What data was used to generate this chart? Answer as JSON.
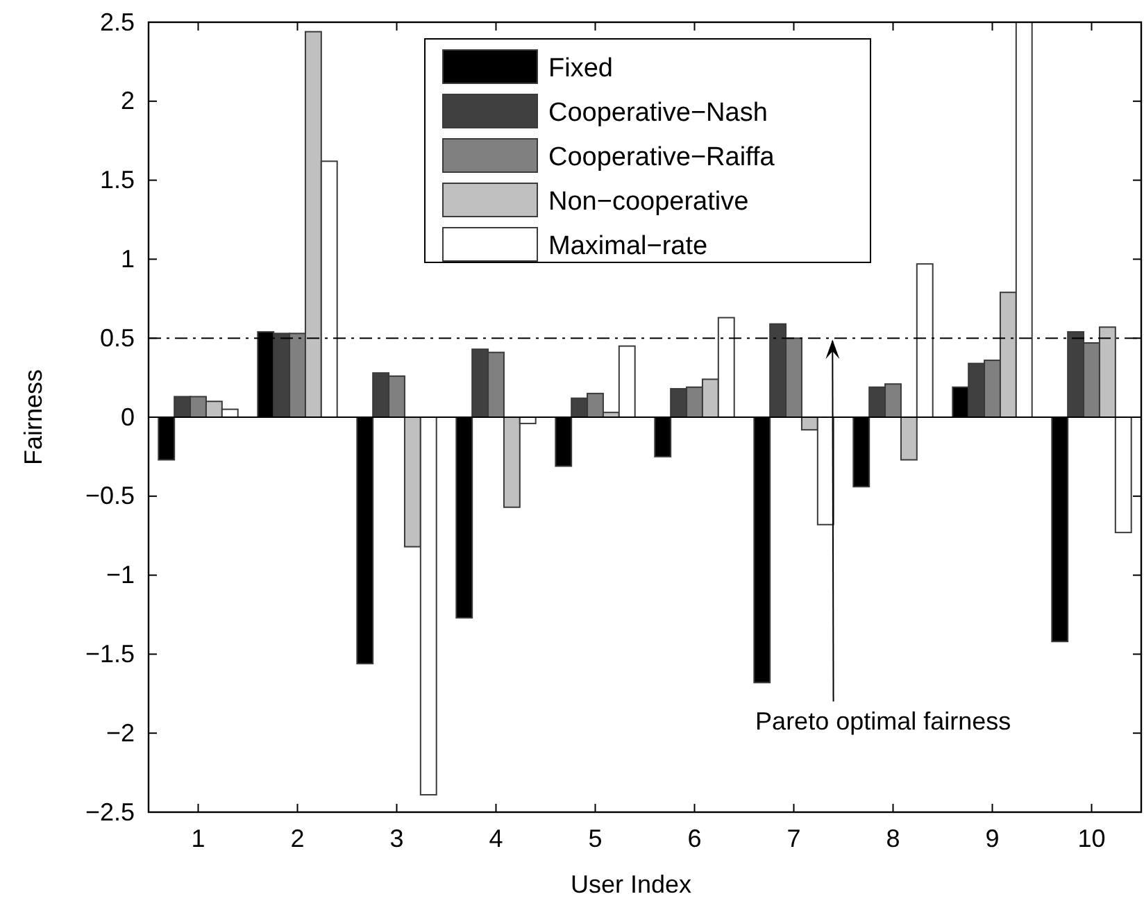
{
  "chart_data": {
    "type": "bar",
    "xlabel": "User Index",
    "ylabel": "Fairness",
    "categories": [
      "1",
      "2",
      "3",
      "4",
      "5",
      "6",
      "7",
      "8",
      "9",
      "10"
    ],
    "series": [
      {
        "name": "Fixed",
        "color": "#000000",
        "values": [
          -0.27,
          0.54,
          -1.56,
          -1.27,
          -0.31,
          -0.25,
          -1.68,
          -0.44,
          0.19,
          -1.42
        ]
      },
      {
        "name": "Cooperative−Nash",
        "color": "#404040",
        "values": [
          0.13,
          0.53,
          0.28,
          0.43,
          0.12,
          0.18,
          0.59,
          0.19,
          0.34,
          0.54
        ]
      },
      {
        "name": "Cooperative−Raiffa",
        "color": "#808080",
        "values": [
          0.13,
          0.53,
          0.26,
          0.41,
          0.15,
          0.19,
          0.5,
          0.21,
          0.36,
          0.47
        ]
      },
      {
        "name": "Non−cooperative",
        "color": "#c0c0c0",
        "values": [
          0.1,
          2.44,
          -0.82,
          -0.57,
          0.03,
          0.24,
          -0.08,
          -0.27,
          0.79,
          0.57
        ]
      },
      {
        "name": "Maximal−rate",
        "color": "#ffffff",
        "values": [
          0.05,
          1.62,
          -2.39,
          -0.04,
          0.45,
          0.63,
          -0.68,
          0.97,
          2.5,
          -0.73
        ]
      }
    ],
    "ylim": [
      -2.5,
      2.5
    ],
    "yticks": [
      {
        "value": -2.5,
        "label": "−2.5"
      },
      {
        "value": -2,
        "label": "−2"
      },
      {
        "value": -1.5,
        "label": "−1.5"
      },
      {
        "value": -1,
        "label": "−1"
      },
      {
        "value": -0.5,
        "label": "−0.5"
      },
      0,
      0.5,
      1,
      1.5,
      2,
      2.5
    ],
    "ref_lines": [
      {
        "axis": "y",
        "value": 0.5,
        "label": "Pareto optimal fairness",
        "line_style": "dashed",
        "color": "#000000"
      }
    ],
    "legend": "top",
    "grid": false
  }
}
